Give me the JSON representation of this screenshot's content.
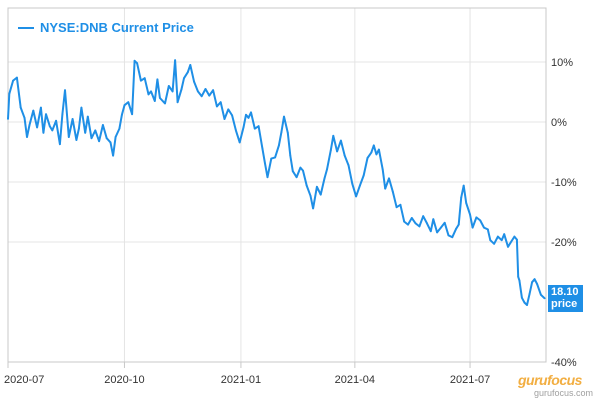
{
  "chart_data": {
    "type": "line",
    "title": "",
    "legend": {
      "position": "top-left",
      "entries": [
        "NYSE:DNB Current Price"
      ]
    },
    "xlabel": "",
    "ylabel": "",
    "x_ticks": [
      "2020-07",
      "2020-10",
      "2021-01",
      "2021-04",
      "2021-07"
    ],
    "x_tick_dates": [
      "2020-07-01",
      "2020-10-01",
      "2021-01-01",
      "2021-04-01",
      "2021-07-01"
    ],
    "y_ticks": [
      10,
      0,
      -10,
      -20,
      -40
    ],
    "y_tick_labels": [
      "10%",
      "0%",
      "-10%",
      "-20%",
      "-40%"
    ],
    "y_axis_side": "right",
    "ylim": [
      -40,
      19
    ],
    "xlim": [
      "2020-07-01",
      "2021-08-30"
    ],
    "grid": true,
    "series": [
      {
        "name": "NYSE:DNB Current Price",
        "color": "#1f8fe6",
        "points": [
          [
            "2020-07-01",
            0.5
          ],
          [
            "2020-07-02",
            4.7
          ],
          [
            "2020-07-05",
            6.9
          ],
          [
            "2020-07-08",
            7.4
          ],
          [
            "2020-07-11",
            2.4
          ],
          [
            "2020-07-14",
            0.7
          ],
          [
            "2020-07-16",
            -2.5
          ],
          [
            "2020-07-18",
            -0.5
          ],
          [
            "2020-07-21",
            1.9
          ],
          [
            "2020-07-24",
            -0.9
          ],
          [
            "2020-07-27",
            2.4
          ],
          [
            "2020-07-29",
            -1.8
          ],
          [
            "2020-07-31",
            1.3
          ],
          [
            "2020-08-03",
            -0.7
          ],
          [
            "2020-08-05",
            -1.4
          ],
          [
            "2020-08-08",
            0.2
          ],
          [
            "2020-08-11",
            -3.7
          ],
          [
            "2020-08-13",
            1.3
          ],
          [
            "2020-08-15",
            5.3
          ],
          [
            "2020-08-18",
            -2.5
          ],
          [
            "2020-08-21",
            0.5
          ],
          [
            "2020-08-24",
            -3.0
          ],
          [
            "2020-08-26",
            -1.1
          ],
          [
            "2020-08-28",
            2.4
          ],
          [
            "2020-08-31",
            -1.8
          ],
          [
            "2020-09-02",
            0.9
          ],
          [
            "2020-09-05",
            -2.7
          ],
          [
            "2020-09-08",
            -1.4
          ],
          [
            "2020-09-11",
            -3.2
          ],
          [
            "2020-09-14",
            -0.5
          ],
          [
            "2020-09-17",
            -2.7
          ],
          [
            "2020-09-20",
            -3.4
          ],
          [
            "2020-09-22",
            -5.6
          ],
          [
            "2020-09-24",
            -2.5
          ],
          [
            "2020-09-27",
            -1.1
          ],
          [
            "2020-09-29",
            1.2
          ],
          [
            "2020-10-01",
            2.8
          ],
          [
            "2020-10-04",
            3.3
          ],
          [
            "2020-10-07",
            1.3
          ],
          [
            "2020-10-09",
            10.2
          ],
          [
            "2020-10-11",
            9.8
          ],
          [
            "2020-10-14",
            6.9
          ],
          [
            "2020-10-17",
            7.3
          ],
          [
            "2020-10-20",
            4.6
          ],
          [
            "2020-10-22",
            5.1
          ],
          [
            "2020-10-25",
            3.5
          ],
          [
            "2020-10-27",
            7.1
          ],
          [
            "2020-10-29",
            4.0
          ],
          [
            "2020-11-02",
            3.1
          ],
          [
            "2020-11-05",
            6.0
          ],
          [
            "2020-11-08",
            5.1
          ],
          [
            "2020-11-10",
            10.3
          ],
          [
            "2020-11-12",
            3.3
          ],
          [
            "2020-11-15",
            5.4
          ],
          [
            "2020-11-17",
            7.3
          ],
          [
            "2020-11-20",
            8.3
          ],
          [
            "2020-11-22",
            9.5
          ],
          [
            "2020-11-25",
            6.7
          ],
          [
            "2020-11-28",
            5.1
          ],
          [
            "2020-12-01",
            4.3
          ],
          [
            "2020-12-04",
            5.5
          ],
          [
            "2020-12-07",
            4.4
          ],
          [
            "2020-12-10",
            5.3
          ],
          [
            "2020-12-13",
            2.6
          ],
          [
            "2020-12-16",
            3.3
          ],
          [
            "2020-12-19",
            0.5
          ],
          [
            "2020-12-22",
            2.1
          ],
          [
            "2020-12-25",
            1.1
          ],
          [
            "2020-12-28",
            -1.4
          ],
          [
            "2020-12-31",
            -3.4
          ],
          [
            "2021-01-03",
            -0.9
          ],
          [
            "2021-01-05",
            1.2
          ],
          [
            "2021-01-07",
            0.7
          ],
          [
            "2021-01-09",
            1.6
          ],
          [
            "2021-01-12",
            -1.1
          ],
          [
            "2021-01-15",
            -0.7
          ],
          [
            "2021-01-18",
            -4.4
          ],
          [
            "2021-01-20",
            -6.9
          ],
          [
            "2021-01-22",
            -9.2
          ],
          [
            "2021-01-25",
            -6.1
          ],
          [
            "2021-01-28",
            -5.9
          ],
          [
            "2021-01-31",
            -3.9
          ],
          [
            "2021-02-02",
            -1.7
          ],
          [
            "2021-02-04",
            0.9
          ],
          [
            "2021-02-07",
            -1.8
          ],
          [
            "2021-02-09",
            -5.6
          ],
          [
            "2021-02-11",
            -8.2
          ],
          [
            "2021-02-14",
            -9.2
          ],
          [
            "2021-02-17",
            -7.6
          ],
          [
            "2021-02-19",
            -8.1
          ],
          [
            "2021-02-22",
            -10.6
          ],
          [
            "2021-02-25",
            -12.3
          ],
          [
            "2021-02-27",
            -14.4
          ],
          [
            "2021-03-02",
            -10.8
          ],
          [
            "2021-03-05",
            -12.1
          ],
          [
            "2021-03-08",
            -9.4
          ],
          [
            "2021-03-10",
            -7.9
          ],
          [
            "2021-03-13",
            -4.7
          ],
          [
            "2021-03-15",
            -2.3
          ],
          [
            "2021-03-18",
            -4.9
          ],
          [
            "2021-03-21",
            -3.1
          ],
          [
            "2021-03-24",
            -5.6
          ],
          [
            "2021-03-27",
            -7.2
          ],
          [
            "2021-03-30",
            -10.3
          ],
          [
            "2021-04-02",
            -12.4
          ],
          [
            "2021-04-05",
            -10.6
          ],
          [
            "2021-04-08",
            -8.9
          ],
          [
            "2021-04-11",
            -6.0
          ],
          [
            "2021-04-14",
            -5.1
          ],
          [
            "2021-04-16",
            -3.9
          ],
          [
            "2021-04-18",
            -5.4
          ],
          [
            "2021-04-20",
            -4.6
          ],
          [
            "2021-04-23",
            -7.9
          ],
          [
            "2021-04-25",
            -11.1
          ],
          [
            "2021-04-28",
            -9.4
          ],
          [
            "2021-05-01",
            -11.6
          ],
          [
            "2021-05-04",
            -14.2
          ],
          [
            "2021-05-07",
            -13.8
          ],
          [
            "2021-05-10",
            -16.6
          ],
          [
            "2021-05-13",
            -17.1
          ],
          [
            "2021-05-16",
            -16.0
          ],
          [
            "2021-05-19",
            -16.9
          ],
          [
            "2021-05-22",
            -17.4
          ],
          [
            "2021-05-25",
            -15.7
          ],
          [
            "2021-05-28",
            -16.9
          ],
          [
            "2021-05-31",
            -18.2
          ],
          [
            "2021-06-02",
            -16.2
          ],
          [
            "2021-06-05",
            -18.4
          ],
          [
            "2021-06-08",
            -17.6
          ],
          [
            "2021-06-11",
            -16.8
          ],
          [
            "2021-06-14",
            -18.9
          ],
          [
            "2021-06-17",
            -19.2
          ],
          [
            "2021-06-20",
            -17.8
          ],
          [
            "2021-06-22",
            -17.1
          ],
          [
            "2021-06-24",
            -12.6
          ],
          [
            "2021-06-26",
            -10.6
          ],
          [
            "2021-06-28",
            -13.5
          ],
          [
            "2021-07-01",
            -15.4
          ],
          [
            "2021-07-03",
            -17.6
          ],
          [
            "2021-07-06",
            -15.9
          ],
          [
            "2021-07-09",
            -16.4
          ],
          [
            "2021-07-12",
            -17.6
          ],
          [
            "2021-07-15",
            -17.9
          ],
          [
            "2021-07-17",
            -19.7
          ],
          [
            "2021-07-20",
            -20.3
          ],
          [
            "2021-07-23",
            -19.1
          ],
          [
            "2021-07-26",
            -19.7
          ],
          [
            "2021-07-28",
            -18.7
          ],
          [
            "2021-07-31",
            -20.8
          ],
          [
            "2021-08-02",
            -20.1
          ],
          [
            "2021-08-05",
            -19.1
          ],
          [
            "2021-08-07",
            -19.6
          ],
          [
            "2021-08-08",
            -25.8
          ],
          [
            "2021-08-09",
            -26.4
          ],
          [
            "2021-08-11",
            -29.3
          ],
          [
            "2021-08-13",
            -30.1
          ],
          [
            "2021-08-15",
            -30.5
          ],
          [
            "2021-08-17",
            -28.7
          ],
          [
            "2021-08-19",
            -26.7
          ],
          [
            "2021-08-21",
            -26.2
          ],
          [
            "2021-08-23",
            -27.0
          ],
          [
            "2021-08-26",
            -28.8
          ],
          [
            "2021-08-29",
            -29.4
          ]
        ]
      }
    ],
    "last_price_label": {
      "value": "18.10",
      "unit": "price"
    }
  },
  "watermark": {
    "text": "gurufocus",
    "sub": "gurufocus.com"
  }
}
